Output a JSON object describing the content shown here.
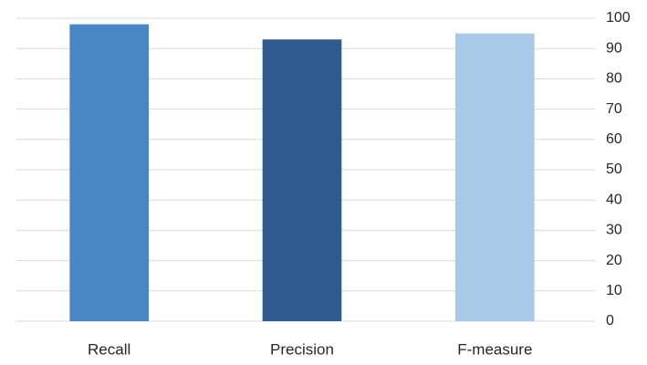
{
  "chart_data": {
    "type": "bar",
    "categories": [
      "Recall",
      "Precision",
      "F-measure"
    ],
    "values": [
      98,
      93,
      95
    ],
    "colors": [
      "#4a86c5",
      "#2f5b8e",
      "#a9c9e9"
    ],
    "ylim": [
      0,
      100
    ],
    "yticks": [
      0,
      10,
      20,
      30,
      40,
      50,
      60,
      70,
      80,
      90,
      100
    ],
    "grid": true,
    "y_axis_side": "right"
  }
}
